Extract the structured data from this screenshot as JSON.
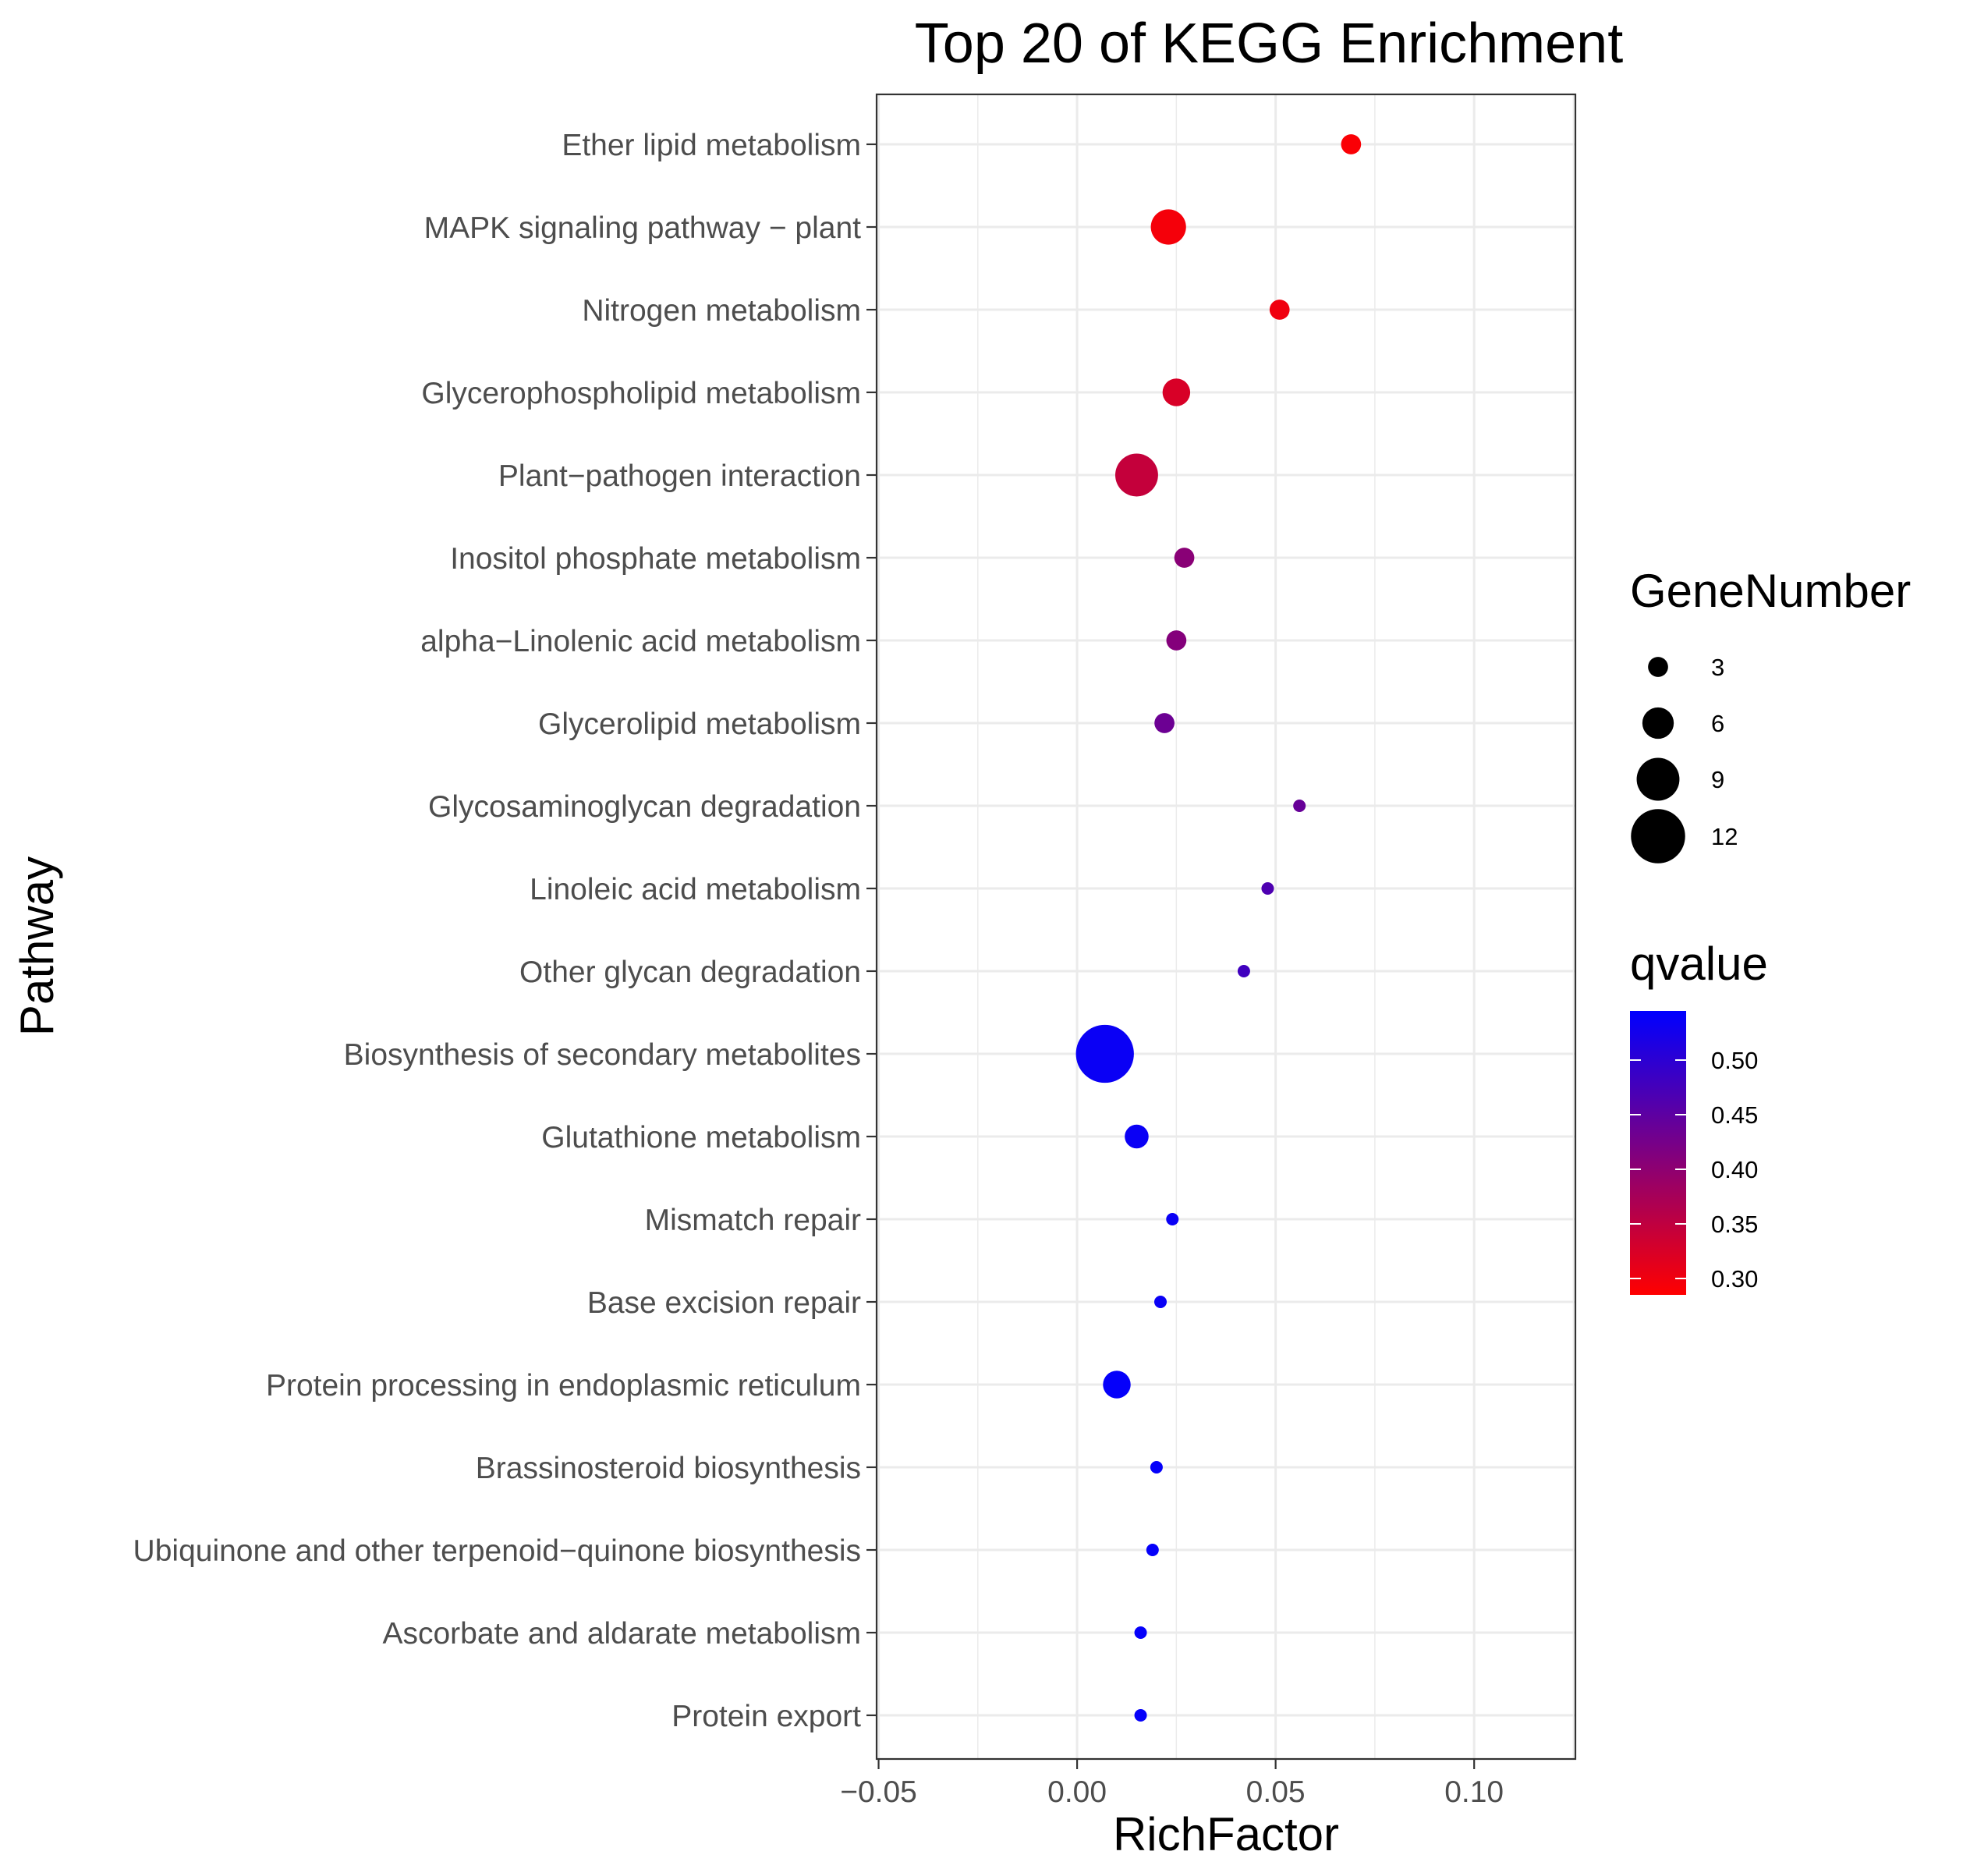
{
  "chart_data": {
    "type": "scatter",
    "title": "Top 20 of KEGG Enrichment",
    "xlabel": "RichFactor",
    "ylabel": "Pathway",
    "xlim": [
      -0.0505,
      0.1255
    ],
    "xticks": [
      -0.05,
      0.0,
      0.05,
      0.1
    ],
    "xtick_labels": [
      "−0.05",
      "0.00",
      "0.05",
      "0.10"
    ],
    "grid": true,
    "legend_position": "right",
    "size_legend": {
      "title": "GeneNumber",
      "values": [
        3,
        6,
        9,
        12
      ],
      "labels": [
        "3",
        "6",
        "9",
        "12"
      ]
    },
    "color_legend": {
      "title": "qvalue",
      "low_color": "#FF0000",
      "high_color": "#0000FF",
      "range": [
        0.285,
        0.545
      ],
      "ticks": [
        0.3,
        0.35,
        0.4,
        0.45,
        0.5
      ],
      "tick_labels": [
        "0.30",
        "0.35",
        "0.40",
        "0.45",
        "0.50"
      ]
    },
    "points": [
      {
        "pathway": "Ether lipid metabolism",
        "rich_factor": 0.069,
        "gene_number": 3,
        "qvalue": 0.29
      },
      {
        "pathway": "MAPK signaling pathway − plant",
        "rich_factor": 0.023,
        "gene_number": 7,
        "qvalue": 0.295
      },
      {
        "pathway": "Nitrogen metabolism",
        "rich_factor": 0.051,
        "gene_number": 3,
        "qvalue": 0.3
      },
      {
        "pathway": "Glycerophospholipid metabolism",
        "rich_factor": 0.025,
        "gene_number": 5,
        "qvalue": 0.325
      },
      {
        "pathway": "Plant−pathogen interaction",
        "rich_factor": 0.015,
        "gene_number": 9,
        "qvalue": 0.345
      },
      {
        "pathway": "Inositol phosphate metabolism",
        "rich_factor": 0.027,
        "gene_number": 3,
        "qvalue": 0.405
      },
      {
        "pathway": "alpha−Linolenic acid metabolism",
        "rich_factor": 0.025,
        "gene_number": 3,
        "qvalue": 0.41
      },
      {
        "pathway": "Glycerolipid metabolism",
        "rich_factor": 0.022,
        "gene_number": 3,
        "qvalue": 0.435
      },
      {
        "pathway": "Glycosaminoglycan degradation",
        "rich_factor": 0.056,
        "gene_number": 1,
        "qvalue": 0.44
      },
      {
        "pathway": "Linoleic acid metabolism",
        "rich_factor": 0.048,
        "gene_number": 1,
        "qvalue": 0.465
      },
      {
        "pathway": "Other glycan degradation",
        "rich_factor": 0.042,
        "gene_number": 1,
        "qvalue": 0.48
      },
      {
        "pathway": "Biosynthesis of secondary metabolites",
        "rich_factor": 0.007,
        "gene_number": 13,
        "qvalue": 0.535
      },
      {
        "pathway": "Glutathione metabolism",
        "rich_factor": 0.015,
        "gene_number": 4,
        "qvalue": 0.535
      },
      {
        "pathway": "Mismatch repair",
        "rich_factor": 0.024,
        "gene_number": 1,
        "qvalue": 0.535
      },
      {
        "pathway": "Base excision repair",
        "rich_factor": 0.021,
        "gene_number": 1,
        "qvalue": 0.535
      },
      {
        "pathway": "Protein processing in endoplasmic reticulum",
        "rich_factor": 0.01,
        "gene_number": 5,
        "qvalue": 0.54
      },
      {
        "pathway": "Brassinosteroid biosynthesis",
        "rich_factor": 0.02,
        "gene_number": 1,
        "qvalue": 0.54
      },
      {
        "pathway": "Ubiquinone and other terpenoid−quinone biosynthesis",
        "rich_factor": 0.019,
        "gene_number": 1,
        "qvalue": 0.54
      },
      {
        "pathway": "Ascorbate and aldarate metabolism",
        "rich_factor": 0.016,
        "gene_number": 1,
        "qvalue": 0.54
      },
      {
        "pathway": "Protein export",
        "rich_factor": 0.016,
        "gene_number": 1,
        "qvalue": 0.54
      }
    ]
  }
}
